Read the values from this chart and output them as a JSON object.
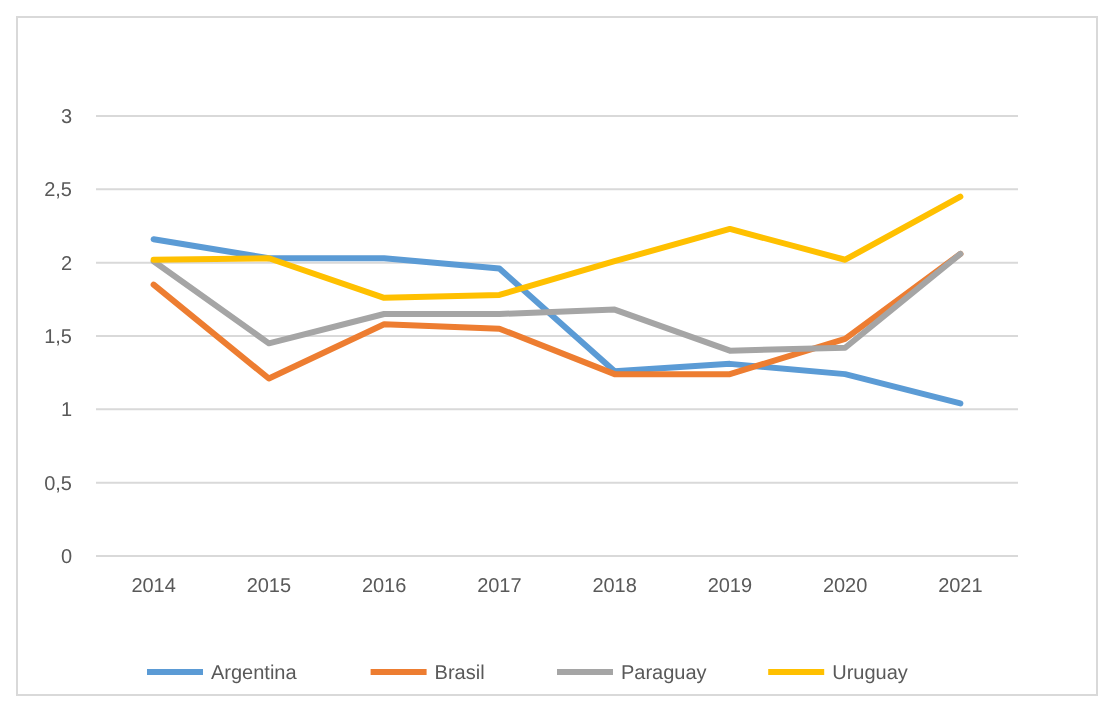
{
  "chart_data": {
    "type": "line",
    "categories": [
      "2014",
      "2015",
      "2016",
      "2017",
      "2018",
      "2019",
      "2020",
      "2021"
    ],
    "series": [
      {
        "name": "Argentina",
        "color": "#5b9bd5",
        "values": [
          2.16,
          2.03,
          2.03,
          1.96,
          1.26,
          1.31,
          1.24,
          1.04
        ]
      },
      {
        "name": "Brasil",
        "color": "#ed7d31",
        "values": [
          1.85,
          1.21,
          1.58,
          1.55,
          1.24,
          1.24,
          1.48,
          2.06
        ]
      },
      {
        "name": "Paraguay",
        "color": "#a5a5a5",
        "values": [
          2.01,
          1.45,
          1.65,
          1.65,
          1.68,
          1.4,
          1.42,
          2.06
        ]
      },
      {
        "name": "Uruguay",
        "color": "#ffc000",
        "values": [
          2.02,
          2.03,
          1.76,
          1.78,
          2.01,
          2.23,
          2.02,
          2.45
        ]
      }
    ],
    "ylim": [
      0,
      3
    ],
    "yticks": [
      0,
      {
        "value": 0.5,
        "label": "0,5"
      },
      1,
      {
        "value": 1.5,
        "label": "1,5"
      },
      2,
      {
        "value": 2.5,
        "label": "2,5"
      },
      3
    ],
    "grid": "y",
    "legend": "bottom",
    "marker": "none",
    "line_style": "solid"
  }
}
